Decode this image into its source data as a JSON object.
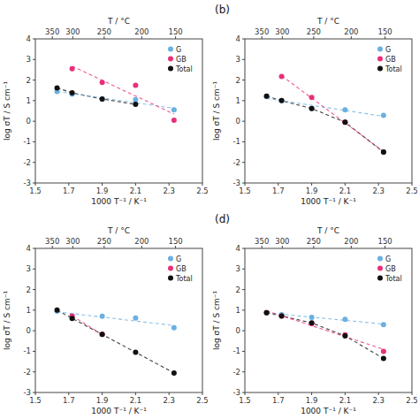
{
  "chart_data": [
    {
      "type": "scatter",
      "xlabel": "1000 T⁻¹ / K⁻¹",
      "ylabel": "log σT / S cm⁻¹",
      "x2label": "T / °C",
      "xlim": [
        1.5,
        2.5
      ],
      "ylim": [
        -3,
        4
      ],
      "xticks": [
        1.5,
        1.7,
        1.9,
        2.1,
        2.3,
        2.5
      ],
      "yticks": [
        -3,
        -2,
        -1,
        0,
        1,
        2,
        3,
        4
      ],
      "x2lim": [
        1.5,
        2.5
      ],
      "x2ticks": [
        {
          "value": 1.6015,
          "label": "350"
        },
        {
          "value": 1.7241,
          "label": "300"
        },
        {
          "value": 1.912,
          "label": "250"
        },
        {
          "value": 2.1368,
          "label": "200"
        },
        {
          "value": 2.3392,
          "label": "150"
        }
      ],
      "legend": "upper right",
      "series": [
        {
          "name": "G",
          "type": "scatter",
          "marker": "circle",
          "color": "#6ab0e0",
          "x": [
            1.63,
            1.72,
            1.9,
            2.1,
            2.33
          ],
          "values": [
            1.45,
            1.32,
            1.07,
            1.05,
            0.55
          ]
        },
        {
          "name": "GB",
          "type": "scatter",
          "marker": "circle",
          "color": "#e8307a",
          "x": [
            1.72,
            1.9,
            2.1,
            2.33
          ],
          "values": [
            2.55,
            1.88,
            1.75,
            0.05
          ]
        },
        {
          "name": "Total",
          "type": "line",
          "line_style": "dashed",
          "marker": "circle",
          "color": "#111111",
          "x": [
            1.63,
            1.72,
            1.9,
            2.1
          ],
          "values": [
            1.62,
            1.38,
            1.08,
            0.82
          ]
        },
        {
          "type": "line",
          "line_style": "dashed",
          "color": "#6ab0e0",
          "x": [
            1.63,
            2.33
          ],
          "values": [
            1.4457,
            0.6274
          ]
        },
        {
          "type": "line",
          "line_style": "dashed",
          "color": "#e8307a",
          "x": [
            1.72,
            2.33
          ],
          "values": [
            2.6733,
            0.3464
          ]
        }
      ]
    },
    {
      "type": "scatter",
      "title": "(b)",
      "xlabel": "1000 T⁻¹ / K⁻¹",
      "ylabel": "log σT / S cm⁻¹",
      "x2label": "T / °C",
      "xlim": [
        1.5,
        2.5
      ],
      "ylim": [
        -3,
        4
      ],
      "xticks": [
        1.5,
        1.7,
        1.9,
        2.1,
        2.3,
        2.5
      ],
      "yticks": [
        -3,
        -2,
        -1,
        0,
        1,
        2,
        3,
        4
      ],
      "x2lim": [
        1.5,
        2.5
      ],
      "x2ticks": [
        {
          "value": 1.6015,
          "label": "350"
        },
        {
          "value": 1.7241,
          "label": "300"
        },
        {
          "value": 1.912,
          "label": "250"
        },
        {
          "value": 2.1368,
          "label": "200"
        },
        {
          "value": 2.3392,
          "label": "150"
        }
      ],
      "legend": "upper right",
      "series": [
        {
          "name": "G",
          "type": "scatter",
          "marker": "circle",
          "color": "#6ab0e0",
          "x": [
            1.63,
            1.72,
            1.9,
            2.1,
            2.33
          ],
          "values": [
            1.2,
            1.0,
            0.62,
            0.55,
            0.28
          ]
        },
        {
          "name": "GB",
          "type": "scatter",
          "marker": "circle",
          "color": "#e8307a",
          "x": [
            1.72,
            1.9,
            2.1,
            2.33
          ],
          "values": [
            2.18,
            1.15,
            -0.05,
            -1.5
          ]
        },
        {
          "name": "Total",
          "type": "line",
          "line_style": "dashed",
          "marker": "circle",
          "color": "#111111",
          "x": [
            1.63,
            1.72,
            1.9,
            2.1,
            2.33
          ],
          "values": [
            1.22,
            1.0,
            0.62,
            -0.05,
            -1.5
          ]
        },
        {
          "type": "line",
          "line_style": "dashed",
          "color": "#6ab0e0",
          "x": [
            1.63,
            2.33
          ],
          "values": [
            1.1128,
            0.2371
          ]
        },
        {
          "type": "line",
          "line_style": "dashed",
          "color": "#e8307a",
          "x": [
            1.72,
            2.33
          ],
          "values": [
            2.2108,
            -1.4717
          ]
        }
      ]
    },
    {
      "type": "scatter",
      "xlabel": "1000 T⁻¹ / K⁻¹",
      "ylabel": "log σT / S cm⁻¹",
      "x2label": "T / °C",
      "xlim": [
        1.5,
        2.5
      ],
      "ylim": [
        -3,
        4
      ],
      "xticks": [
        1.5,
        1.7,
        1.9,
        2.1,
        2.3,
        2.5
      ],
      "yticks": [
        -3,
        -2,
        -1,
        0,
        1,
        2,
        3,
        4
      ],
      "x2lim": [
        1.5,
        2.5
      ],
      "x2ticks": [
        {
          "value": 1.6015,
          "label": "350"
        },
        {
          "value": 1.7241,
          "label": "300"
        },
        {
          "value": 1.912,
          "label": "250"
        },
        {
          "value": 2.1368,
          "label": "200"
        },
        {
          "value": 2.3392,
          "label": "150"
        }
      ],
      "legend": "upper right",
      "series": [
        {
          "name": "G",
          "type": "scatter",
          "marker": "circle",
          "color": "#6ab0e0",
          "x": [
            1.63,
            1.72,
            1.9,
            2.1,
            2.33
          ],
          "values": [
            0.95,
            0.72,
            0.7,
            0.62,
            0.15
          ]
        },
        {
          "name": "GB",
          "type": "scatter",
          "marker": "circle",
          "color": "#e8307a",
          "x": [
            1.72,
            1.9
          ],
          "values": [
            0.72,
            -0.18
          ]
        },
        {
          "name": "Total",
          "type": "line",
          "line_style": "dashed",
          "marker": "circle",
          "color": "#111111",
          "x": [
            1.63,
            1.72,
            1.9,
            2.1,
            2.33
          ],
          "values": [
            1.0,
            0.6,
            -0.18,
            -1.05,
            -2.05
          ]
        },
        {
          "type": "line",
          "line_style": "dashed",
          "color": "#6ab0e0",
          "x": [
            1.63,
            2.33
          ],
          "values": [
            0.9216,
            0.2499
          ]
        },
        {
          "type": "line",
          "line_style": "dashed",
          "color": "#e8307a",
          "x": [
            1.72,
            1.9
          ],
          "values": [
            0.72,
            -0.18
          ]
        }
      ]
    },
    {
      "type": "scatter",
      "title": "(d)",
      "xlabel": "1000 T⁻¹ / K⁻¹",
      "ylabel": "log σT / S cm⁻¹",
      "x2label": "T / °C",
      "xlim": [
        1.5,
        2.5
      ],
      "ylim": [
        -3,
        4
      ],
      "xticks": [
        1.5,
        1.7,
        1.9,
        2.1,
        2.3,
        2.5
      ],
      "yticks": [
        -3,
        -2,
        -1,
        0,
        1,
        2,
        3,
        4
      ],
      "x2lim": [
        1.5,
        2.5
      ],
      "x2ticks": [
        {
          "value": 1.6015,
          "label": "350"
        },
        {
          "value": 1.7241,
          "label": "300"
        },
        {
          "value": 1.912,
          "label": "250"
        },
        {
          "value": 2.1368,
          "label": "200"
        },
        {
          "value": 2.3392,
          "label": "150"
        }
      ],
      "legend": "upper right",
      "series": [
        {
          "name": "G",
          "type": "scatter",
          "marker": "circle",
          "color": "#6ab0e0",
          "x": [
            1.63,
            1.72,
            1.9,
            2.1,
            2.33
          ],
          "values": [
            0.88,
            0.78,
            0.65,
            0.55,
            0.3
          ]
        },
        {
          "name": "GB",
          "type": "scatter",
          "marker": "circle",
          "color": "#e8307a",
          "x": [
            1.63,
            1.72,
            1.9,
            2.1,
            2.33
          ],
          "values": [
            0.88,
            0.72,
            0.35,
            -0.2,
            -1.0
          ]
        },
        {
          "name": "Total",
          "type": "line",
          "line_style": "dashed",
          "marker": "circle",
          "color": "#111111",
          "x": [
            1.63,
            1.72,
            1.9,
            2.1,
            2.33
          ],
          "values": [
            0.88,
            0.72,
            0.38,
            -0.25,
            -1.35
          ]
        },
        {
          "type": "line",
          "line_style": "dashed",
          "color": "#6ab0e0",
          "x": [
            1.63,
            2.33
          ],
          "values": [
            0.8709,
            0.3244
          ]
        },
        {
          "type": "line",
          "line_style": "dashed",
          "color": "#e8307a",
          "x": [
            1.63,
            2.33
          ],
          "values": [
            0.9669,
            -0.9018
          ]
        }
      ]
    }
  ]
}
